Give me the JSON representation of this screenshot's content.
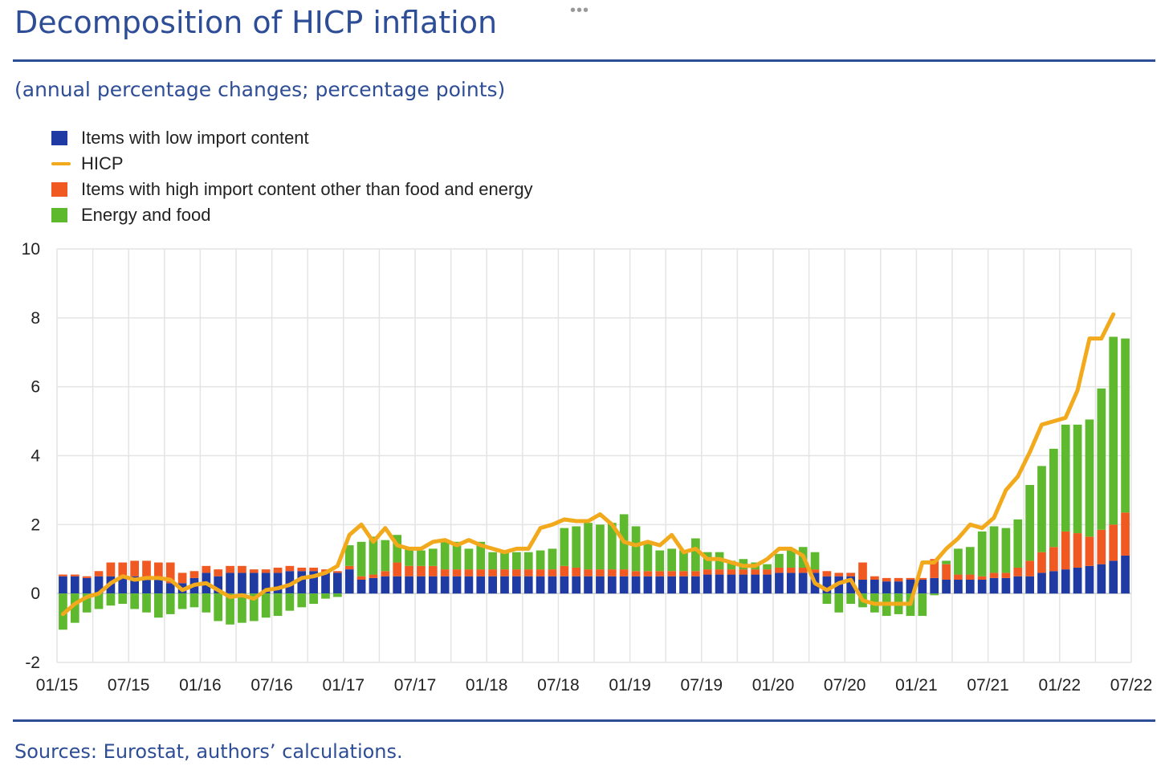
{
  "title": "Decomposition of HICP inflation",
  "subtitle": "(annual percentage changes; percentage points)",
  "source": "Sources: Eurostat, authors’ calculations.",
  "menu_label": "•••",
  "colors": {
    "low_import": "#1f3aa3",
    "hicp": "#f2a91c",
    "high_import": "#f05a22",
    "energy_food": "#5fb92e",
    "accent": "#2e4d97",
    "grid": "#e4e4e4"
  },
  "legend": [
    {
      "label": "Items with low import content",
      "kind": "box",
      "color_key": "low_import"
    },
    {
      "label": "HICP",
      "kind": "line",
      "color_key": "hicp"
    },
    {
      "label": "Items with high import content other than food and energy",
      "kind": "box",
      "color_key": "high_import"
    },
    {
      "label": "Energy and food",
      "kind": "box",
      "color_key": "energy_food"
    }
  ],
  "chart_data": {
    "type": "bar",
    "stacked": true,
    "title": "Decomposition of HICP inflation",
    "ylabel": "annual percentage changes; percentage points",
    "ylim": [
      -2,
      10
    ],
    "yticks": [
      -2,
      0,
      2,
      4,
      6,
      8,
      10
    ],
    "xlim_months": [
      0,
      90
    ],
    "xticks": [
      {
        "month": 0,
        "label": "01/15"
      },
      {
        "month": 6,
        "label": "07/15"
      },
      {
        "month": 12,
        "label": "01/16"
      },
      {
        "month": 18,
        "label": "07/16"
      },
      {
        "month": 24,
        "label": "01/17"
      },
      {
        "month": 30,
        "label": "07/17"
      },
      {
        "month": 36,
        "label": "01/18"
      },
      {
        "month": 42,
        "label": "07/18"
      },
      {
        "month": 48,
        "label": "01/19"
      },
      {
        "month": 54,
        "label": "07/19"
      },
      {
        "month": 60,
        "label": "01/20"
      },
      {
        "month": 66,
        "label": "07/20"
      },
      {
        "month": 72,
        "label": "01/21"
      },
      {
        "month": 78,
        "label": "07/21"
      },
      {
        "month": 84,
        "label": "01/22"
      },
      {
        "month": 90,
        "label": "07/22"
      }
    ],
    "grid": true,
    "legend_position": "top-left",
    "start_period": "01/15",
    "series": [
      {
        "name": "Items with low import content",
        "key": "low_import",
        "kind": "bar",
        "values": [
          0.5,
          0.5,
          0.45,
          0.5,
          0.5,
          0.5,
          0.5,
          0.4,
          0.4,
          0.3,
          0.3,
          0.45,
          0.6,
          0.5,
          0.6,
          0.6,
          0.6,
          0.6,
          0.6,
          0.65,
          0.65,
          0.65,
          0.6,
          0.6,
          0.7,
          0.4,
          0.45,
          0.5,
          0.5,
          0.5,
          0.5,
          0.5,
          0.5,
          0.5,
          0.5,
          0.5,
          0.5,
          0.5,
          0.5,
          0.5,
          0.5,
          0.5,
          0.5,
          0.5,
          0.5,
          0.5,
          0.5,
          0.5,
          0.5,
          0.5,
          0.5,
          0.5,
          0.5,
          0.5,
          0.55,
          0.55,
          0.55,
          0.55,
          0.55,
          0.55,
          0.6,
          0.6,
          0.6,
          0.6,
          0.5,
          0.5,
          0.5,
          0.4,
          0.4,
          0.35,
          0.35,
          0.4,
          0.4,
          0.45,
          0.4,
          0.4,
          0.4,
          0.4,
          0.45,
          0.45,
          0.5,
          0.5,
          0.6,
          0.65,
          0.7,
          0.75,
          0.8,
          0.85,
          0.95,
          1.1
        ]
      },
      {
        "name": "Items with high import content other than food and energy",
        "key": "high_import",
        "kind": "bar",
        "values": [
          0.05,
          0.05,
          0.05,
          0.15,
          0.4,
          0.4,
          0.45,
          0.55,
          0.5,
          0.6,
          0.3,
          0.2,
          0.2,
          0.2,
          0.2,
          0.2,
          0.1,
          0.1,
          0.15,
          0.15,
          0.1,
          0.1,
          0.1,
          0.05,
          0.1,
          0.1,
          0.1,
          0.15,
          0.4,
          0.3,
          0.3,
          0.3,
          0.2,
          0.2,
          0.2,
          0.2,
          0.2,
          0.2,
          0.2,
          0.2,
          0.2,
          0.2,
          0.3,
          0.25,
          0.2,
          0.2,
          0.2,
          0.2,
          0.15,
          0.15,
          0.15,
          0.15,
          0.15,
          0.15,
          0.15,
          0.15,
          0.15,
          0.15,
          0.15,
          0.15,
          0.15,
          0.15,
          0.15,
          0.1,
          0.15,
          0.1,
          0.1,
          0.5,
          0.1,
          0.1,
          0.1,
          0.05,
          0.05,
          0.55,
          0.45,
          0.15,
          0.15,
          0.1,
          0.15,
          0.15,
          0.25,
          0.45,
          0.6,
          0.7,
          1.1,
          1.0,
          0.85,
          1.0,
          1.05,
          1.25
        ]
      },
      {
        "name": "Energy and food",
        "key": "energy_food",
        "kind": "bar",
        "values": [
          -1.05,
          -0.85,
          -0.55,
          -0.45,
          -0.35,
          -0.3,
          -0.45,
          -0.55,
          -0.7,
          -0.6,
          -0.45,
          -0.4,
          -0.55,
          -0.8,
          -0.9,
          -0.85,
          -0.8,
          -0.7,
          -0.65,
          -0.5,
          -0.4,
          -0.3,
          -0.15,
          -0.1,
          0.6,
          1.0,
          1.1,
          0.9,
          0.8,
          0.5,
          0.45,
          0.5,
          0.8,
          0.8,
          0.6,
          0.8,
          0.5,
          0.5,
          0.5,
          0.5,
          0.55,
          0.6,
          1.1,
          1.2,
          1.35,
          1.3,
          1.35,
          1.6,
          1.3,
          0.8,
          0.6,
          0.65,
          0.6,
          0.95,
          0.5,
          0.5,
          0.25,
          0.3,
          0.2,
          0.15,
          0.4,
          0.55,
          0.6,
          0.5,
          -0.3,
          -0.55,
          -0.3,
          -0.4,
          -0.55,
          -0.65,
          -0.6,
          -0.65,
          -0.65,
          -0.05,
          0.1,
          0.75,
          0.8,
          1.3,
          1.35,
          1.3,
          1.4,
          2.2,
          2.5,
          2.85,
          3.1,
          3.15,
          3.4,
          4.1,
          5.45,
          5.05
        ]
      },
      {
        "name": "HICP",
        "key": "hicp",
        "kind": "line",
        "values": [
          -0.6,
          -0.3,
          -0.1,
          0.0,
          0.3,
          0.5,
          0.4,
          0.45,
          0.45,
          0.4,
          0.1,
          0.25,
          0.3,
          0.1,
          -0.1,
          -0.05,
          -0.15,
          0.1,
          0.15,
          0.25,
          0.45,
          0.5,
          0.6,
          0.8,
          1.7,
          2.0,
          1.5,
          1.9,
          1.4,
          1.3,
          1.3,
          1.5,
          1.55,
          1.4,
          1.55,
          1.4,
          1.3,
          1.2,
          1.3,
          1.3,
          1.9,
          2.0,
          2.15,
          2.1,
          2.1,
          2.3,
          2.0,
          1.5,
          1.4,
          1.5,
          1.4,
          1.7,
          1.2,
          1.3,
          1.0,
          1.0,
          0.9,
          0.8,
          0.8,
          1.0,
          1.3,
          1.3,
          1.1,
          0.3,
          0.1,
          0.3,
          0.4,
          -0.2,
          -0.3,
          -0.3,
          -0.3,
          -0.3,
          0.9,
          0.9,
          1.3,
          1.6,
          2.0,
          1.9,
          2.2,
          3.0,
          3.4,
          4.1,
          4.9,
          5.0,
          5.1,
          5.9,
          7.4,
          7.4,
          8.1
        ]
      }
    ]
  }
}
